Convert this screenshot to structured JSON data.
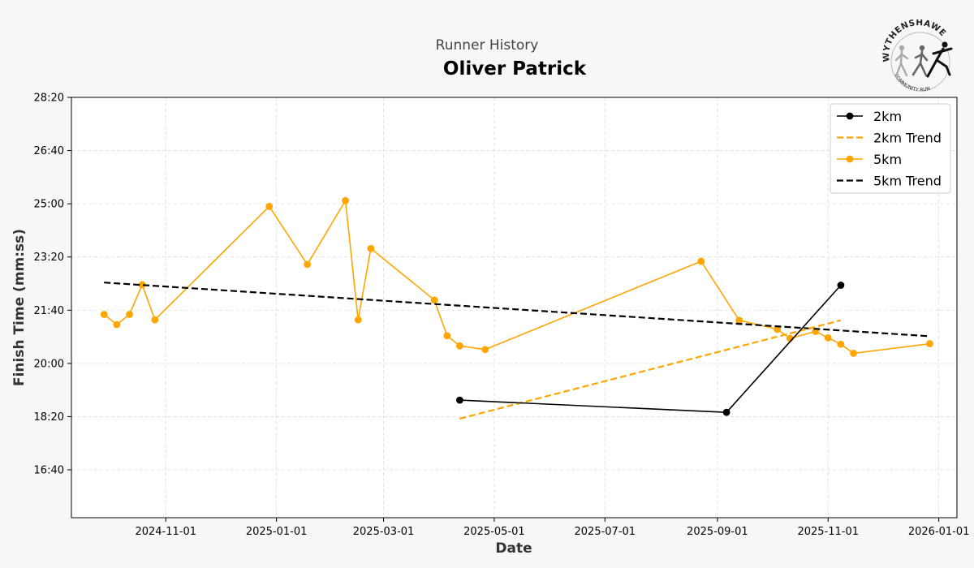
{
  "header": {
    "subtitle": "Runner History",
    "title": "Oliver Patrick",
    "logo_text_top": "WYTHENSHAWE",
    "logo_text_bottom": "COMMUNITY RUN"
  },
  "chart_data": {
    "type": "line",
    "xlabel": "Date",
    "ylabel": "Finish Time (mm:ss)",
    "x_range": [
      "2024-09-10",
      "2026-01-11"
    ],
    "x_ticks": [
      "2024-11-01",
      "2025-01-01",
      "2025-03-01",
      "2025-05-01",
      "2025-07-01",
      "2025-09-01",
      "2025-11-01",
      "2026-01-01"
    ],
    "y_range_seconds": [
      910,
      1700
    ],
    "y_ticks": [
      "16:40",
      "18:20",
      "20:00",
      "21:40",
      "23:20",
      "25:00",
      "26:40",
      "28:20"
    ],
    "grid": true,
    "legend_position": "top-right",
    "series": [
      {
        "name": "2km",
        "kind": "line-markers",
        "color": "#000000",
        "points": [
          [
            "2025-04-12",
            "18:51"
          ],
          [
            "2025-09-06",
            "18:28"
          ],
          [
            "2025-11-08",
            "22:27"
          ]
        ]
      },
      {
        "name": "2km Trend",
        "kind": "dashed",
        "color": "#ffa500",
        "points": [
          [
            "2025-04-12",
            "18:16"
          ],
          [
            "2025-11-08",
            "21:21"
          ]
        ]
      },
      {
        "name": "5km",
        "kind": "line-markers",
        "color": "#ffa500",
        "points": [
          [
            "2024-09-28",
            "21:32"
          ],
          [
            "2024-10-05",
            "21:13"
          ],
          [
            "2024-10-12",
            "21:32"
          ],
          [
            "2024-10-19",
            "22:28"
          ],
          [
            "2024-10-26",
            "21:22"
          ],
          [
            "2024-12-28",
            "24:55"
          ],
          [
            "2025-01-18",
            "23:06"
          ],
          [
            "2025-02-08",
            "25:06"
          ],
          [
            "2025-02-15",
            "21:22"
          ],
          [
            "2025-02-22",
            "23:36"
          ],
          [
            "2025-03-29",
            "21:59"
          ],
          [
            "2025-04-05",
            "20:52"
          ],
          [
            "2025-04-12",
            "20:33"
          ],
          [
            "2025-04-26",
            "20:26"
          ],
          [
            "2025-08-23",
            "23:12"
          ],
          [
            "2025-09-13",
            "21:21"
          ],
          [
            "2025-10-04",
            "21:04"
          ],
          [
            "2025-10-11",
            "20:47"
          ],
          [
            "2025-10-25",
            "21:00"
          ],
          [
            "2025-11-01",
            "20:48"
          ],
          [
            "2025-11-08",
            "20:36"
          ],
          [
            "2025-11-15",
            "20:19"
          ],
          [
            "2025-12-27",
            "20:37"
          ]
        ]
      },
      {
        "name": "5km Trend",
        "kind": "dashed",
        "color": "#000000",
        "points": [
          [
            "2024-09-28",
            "22:32"
          ],
          [
            "2025-12-27",
            "20:51"
          ]
        ]
      }
    ]
  }
}
